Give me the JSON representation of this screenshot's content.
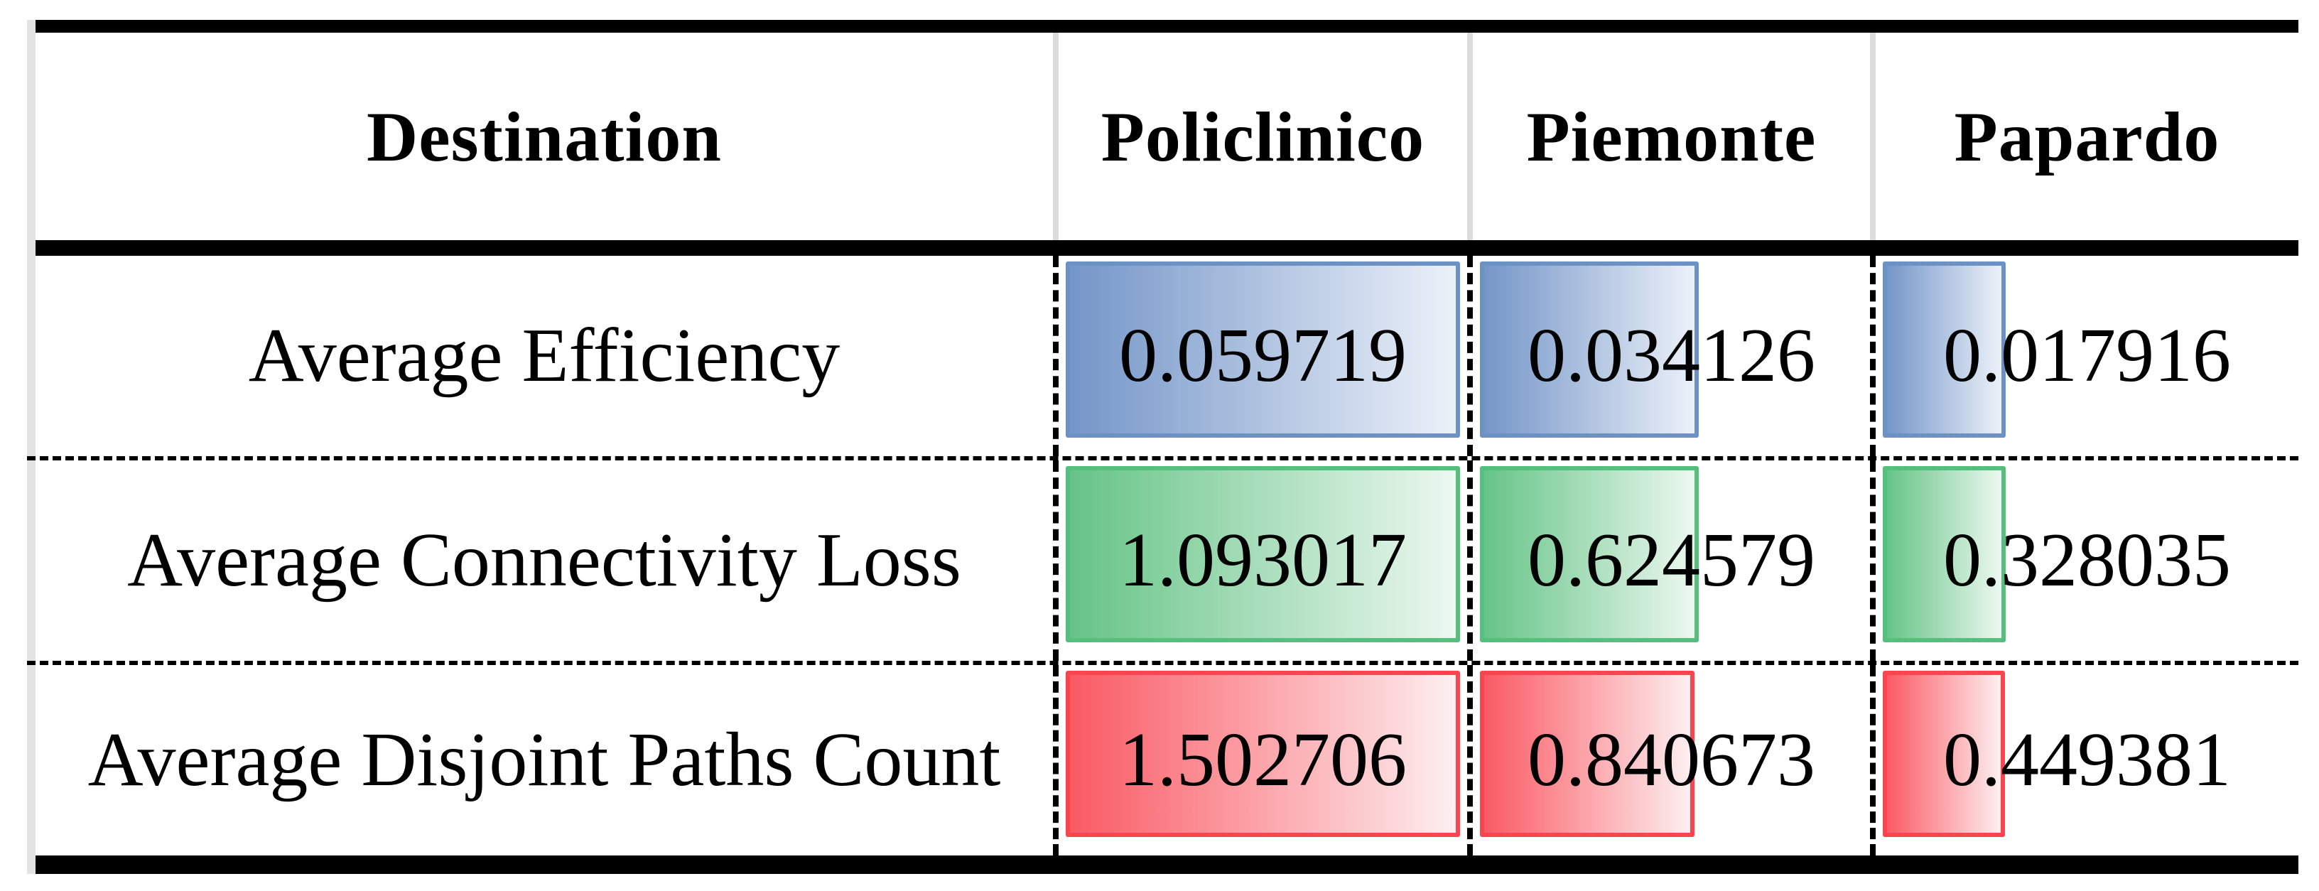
{
  "chart_data": {
    "type": "table",
    "title": "",
    "columns": [
      "Destination",
      "Policlinico",
      "Piemonte",
      "Papardo"
    ],
    "categories": [
      "Policlinico",
      "Piemonte",
      "Papardo"
    ],
    "series": [
      {
        "name": "Average Efficiency",
        "values": [
          0.059719,
          0.034126,
          0.017916
        ],
        "border_color": "#6b92c3",
        "fill_from": "#7496c8",
        "fill_to": "#ecf1f9"
      },
      {
        "name": "Average Connectivity Loss",
        "values": [
          1.093017,
          0.624579,
          0.328035
        ],
        "border_color": "#55bf7d",
        "fill_from": "#66c487",
        "fill_to": "#ecf8f0"
      },
      {
        "name": "Average Disjoint Paths Count",
        "values": [
          1.502706,
          0.840673,
          0.449381
        ],
        "border_color": "#f8454f",
        "fill_from": "#fa5a64",
        "fill_to": "#fdeff0"
      }
    ],
    "bar_scaling": "per_row_max",
    "layout": {
      "grid": "off",
      "legend": "none"
    },
    "style_colors": {
      "rule_black": "#000000",
      "header_separator_gray": "#dcdcdc",
      "outer_left_gray": "#e3e3e3",
      "background": "#ffffff"
    }
  }
}
